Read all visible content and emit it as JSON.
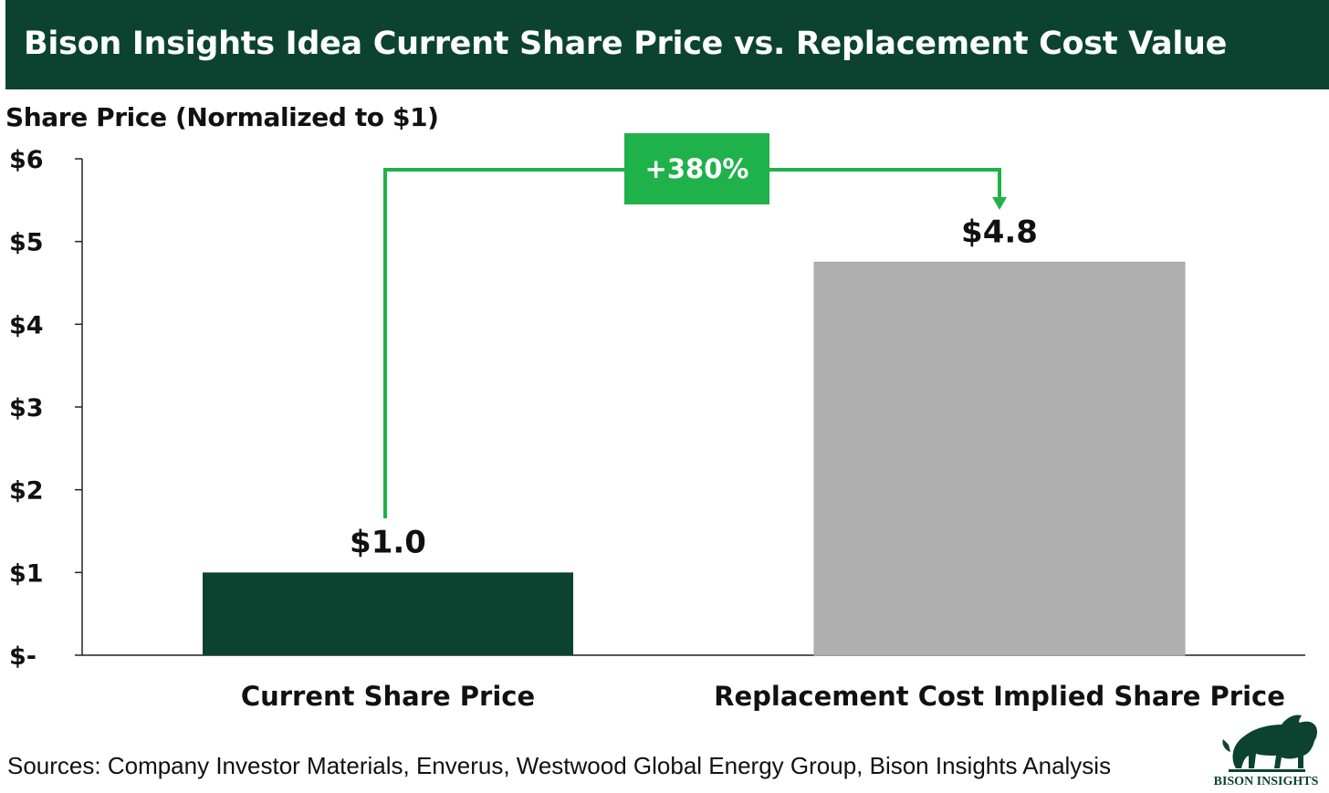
{
  "header": {
    "title": "Bison Insights Idea Current Share Price vs. Replacement Cost Value"
  },
  "chart_data": {
    "type": "bar",
    "ylabel": "Share Price (Normalized to $1)",
    "categories": [
      "Current Share Price",
      "Replacement Cost Implied Share Price"
    ],
    "values": [
      1.0,
      4.75
    ],
    "data_labels": [
      "$1.0",
      "$4.8"
    ],
    "colors": [
      "#0b4330",
      "#b0b0b0"
    ],
    "ylim": [
      0,
      6
    ],
    "yticks": [
      0,
      1,
      2,
      3,
      4,
      5,
      6
    ],
    "ytick_labels": [
      "$-",
      "$1",
      "$2",
      "$3",
      "$4",
      "$5",
      "$6"
    ],
    "annotation": {
      "text": "+380%",
      "from": "Current Share Price",
      "to": "Replacement Cost Implied Share Price",
      "color": "#1fb14a"
    },
    "grid": false,
    "legend": "none"
  },
  "footer": {
    "source": "Sources: Company Investor Materials, Enverus, Westwood Global Energy Group, Bison Insights Analysis"
  },
  "logo": {
    "text": "BISON INSIGHTS"
  }
}
